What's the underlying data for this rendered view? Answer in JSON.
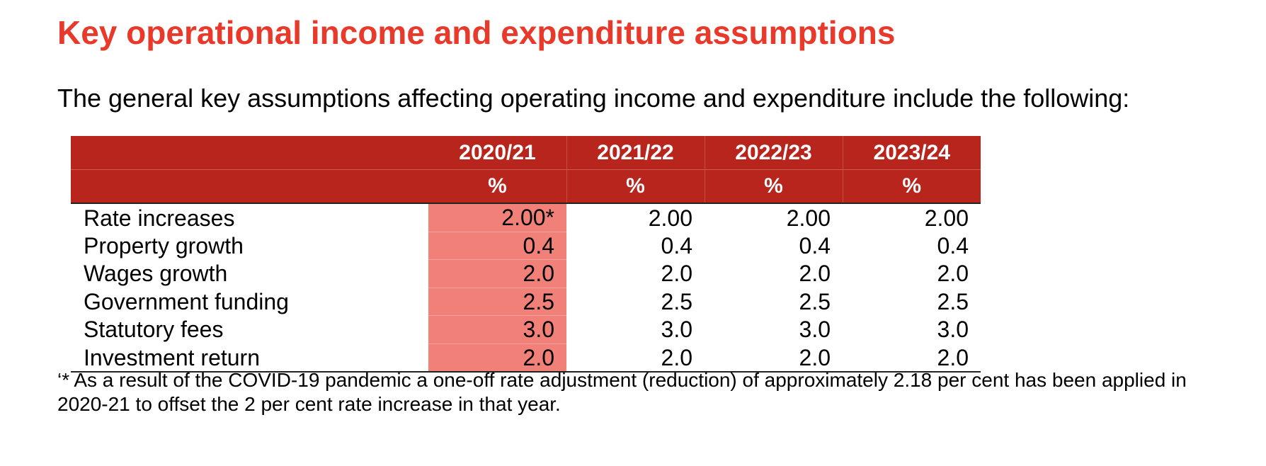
{
  "heading": "Key operational income and expenditure assumptions",
  "intro": "The general key assumptions affecting operating income and expenditure include the following:",
  "table": {
    "columns": [
      {
        "year": "2020/21",
        "unit": "%"
      },
      {
        "year": "2021/22",
        "unit": "%"
      },
      {
        "year": "2022/23",
        "unit": "%"
      },
      {
        "year": "2023/24",
        "unit": "%"
      }
    ],
    "highlight_column": "2020/21",
    "rows": [
      {
        "label": "Rate increases",
        "values": [
          "2.00*",
          "2.00",
          "2.00",
          "2.00"
        ]
      },
      {
        "label": "Property growth",
        "values": [
          "0.4",
          "0.4",
          "0.4",
          "0.4"
        ]
      },
      {
        "label": "Wages growth",
        "values": [
          "2.0",
          "2.0",
          "2.0",
          "2.0"
        ]
      },
      {
        "label": "Government funding",
        "values": [
          "2.5",
          "2.5",
          "2.5",
          "2.5"
        ]
      },
      {
        "label": "Statutory fees",
        "values": [
          "3.0",
          "3.0",
          "3.0",
          "3.0"
        ]
      },
      {
        "label": "Investment return",
        "values": [
          "2.0",
          "2.0",
          "2.0",
          "2.0"
        ]
      }
    ]
  },
  "footnote": "‘* As a result of the COVID-19 pandemic a one-off rate adjustment (reduction) of approximately 2.18 per cent has been applied in 2020-21 to offset the 2 per cent rate increase in that year.",
  "colors": {
    "heading": "#e8392b",
    "header_fill": "#b8251d",
    "highlight_fill": "#f08078",
    "text": "#000000"
  }
}
